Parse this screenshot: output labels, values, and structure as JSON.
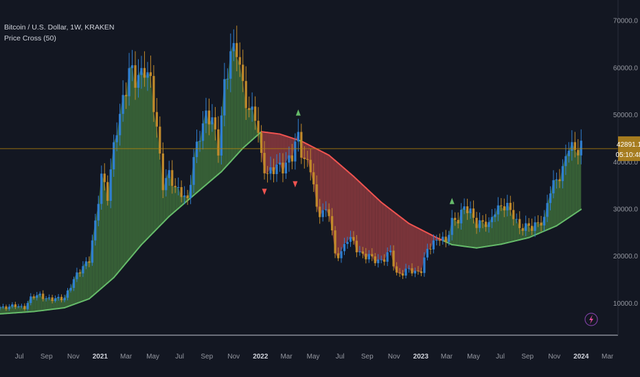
{
  "legend": {
    "symbol": "Bitcoin / U.S. Dollar, 1W, KRAKEN",
    "indicator": "Price Cross (50)"
  },
  "price_label": {
    "price": "42891.1",
    "countdown": "05:10:48"
  },
  "colors": {
    "background": "#131722",
    "candle_up": "#2f7fd1",
    "candle_down": "#c18a2b",
    "fill_above": "#3d6b3a",
    "fill_below": "#8c3a3e",
    "ma_above": "#66bb6a",
    "ma_below": "#ef5350",
    "price_line": "#b8860b",
    "price_tag": "#a67c1f"
  },
  "icons": {
    "bottom_right": "lightning-bolt-icon"
  },
  "chart_data": {
    "type": "line",
    "title": "Bitcoin / U.S. Dollar, 1W, KRAKEN",
    "indicator_name": "Price Cross (50)",
    "ylim": [
      4000,
      72000
    ],
    "y_ticks": [
      10000,
      20000,
      30000,
      40000,
      50000,
      60000,
      70000
    ],
    "y_tick_labels": [
      "10000.0",
      "20000.0",
      "30000.0",
      "40000.0",
      "50000.0",
      "60000.0",
      "70000.0"
    ],
    "x_ticks": [
      {
        "date": "2020-07-01",
        "label": "Jul"
      },
      {
        "date": "2020-09-01",
        "label": "Sep"
      },
      {
        "date": "2020-11-01",
        "label": "Nov"
      },
      {
        "date": "2021-01-01",
        "label": "2021"
      },
      {
        "date": "2021-03-01",
        "label": "Mar"
      },
      {
        "date": "2021-05-01",
        "label": "May"
      },
      {
        "date": "2021-07-01",
        "label": "Jul"
      },
      {
        "date": "2021-09-01",
        "label": "Sep"
      },
      {
        "date": "2021-11-01",
        "label": "Nov"
      },
      {
        "date": "2022-01-01",
        "label": "2022"
      },
      {
        "date": "2022-03-01",
        "label": "Mar"
      },
      {
        "date": "2022-05-01",
        "label": "May"
      },
      {
        "date": "2022-07-01",
        "label": "Jul"
      },
      {
        "date": "2022-09-01",
        "label": "Sep"
      },
      {
        "date": "2022-11-01",
        "label": "Nov"
      },
      {
        "date": "2023-01-01",
        "label": "2023"
      },
      {
        "date": "2023-03-01",
        "label": "Mar"
      },
      {
        "date": "2023-05-01",
        "label": "May"
      },
      {
        "date": "2023-07-01",
        "label": "Jul"
      },
      {
        "date": "2023-09-01",
        "label": "Sep"
      },
      {
        "date": "2023-11-01",
        "label": "Nov"
      },
      {
        "date": "2024-01-01",
        "label": "2024"
      },
      {
        "date": "2024-03-01",
        "label": "Mar"
      }
    ],
    "xlim": [
      "2020-05-18",
      "2024-03-25"
    ],
    "current_price": 42891.1,
    "price_series": {
      "name": "BTCUSD close (weekly, approx.)",
      "points": [
        [
          "2020-05-18",
          9200
        ],
        [
          "2020-06-15",
          9400
        ],
        [
          "2020-07-13",
          9300
        ],
        [
          "2020-07-27",
          11100
        ],
        [
          "2020-08-17",
          11800
        ],
        [
          "2020-09-14",
          10700
        ],
        [
          "2020-10-12",
          11400
        ],
        [
          "2020-10-26",
          13600
        ],
        [
          "2020-11-09",
          16000
        ],
        [
          "2020-11-23",
          18200
        ],
        [
          "2020-12-07",
          19200
        ],
        [
          "2020-12-21",
          26500
        ],
        [
          "2021-01-04",
          38000
        ],
        [
          "2021-01-18",
          33000
        ],
        [
          "2021-02-08",
          47000
        ],
        [
          "2021-02-22",
          54000
        ],
        [
          "2021-03-08",
          59000
        ],
        [
          "2021-03-22",
          57000
        ],
        [
          "2021-04-12",
          61000
        ],
        [
          "2021-04-26",
          56000
        ],
        [
          "2021-05-10",
          47000
        ],
        [
          "2021-05-24",
          36000
        ],
        [
          "2021-06-07",
          37000
        ],
        [
          "2021-06-21",
          34000
        ],
        [
          "2021-07-05",
          34500
        ],
        [
          "2021-07-19",
          31500
        ],
        [
          "2021-08-02",
          40000
        ],
        [
          "2021-08-16",
          47000
        ],
        [
          "2021-08-30",
          50000
        ],
        [
          "2021-09-13",
          48000
        ],
        [
          "2021-09-27",
          43500
        ],
        [
          "2021-10-11",
          57000
        ],
        [
          "2021-10-25",
          61500
        ],
        [
          "2021-11-08",
          65000
        ],
        [
          "2021-11-22",
          57000
        ],
        [
          "2021-12-06",
          49500
        ],
        [
          "2021-12-20",
          50500
        ],
        [
          "2022-01-03",
          42000
        ],
        [
          "2022-01-17",
          36500
        ],
        [
          "2022-01-31",
          38500
        ],
        [
          "2022-02-14",
          40000
        ],
        [
          "2022-02-28",
          39000
        ],
        [
          "2022-03-14",
          41000
        ],
        [
          "2022-03-28",
          46500
        ],
        [
          "2022-04-11",
          40000
        ],
        [
          "2022-04-25",
          38500
        ],
        [
          "2022-05-09",
          30500
        ],
        [
          "2022-05-23",
          29500
        ],
        [
          "2022-06-06",
          29000
        ],
        [
          "2022-06-20",
          20500
        ],
        [
          "2022-07-04",
          21000
        ],
        [
          "2022-07-18",
          23500
        ],
        [
          "2022-08-01",
          23000
        ],
        [
          "2022-08-15",
          21000
        ],
        [
          "2022-08-29",
          19800
        ],
        [
          "2022-09-12",
          19600
        ],
        [
          "2022-09-26",
          19300
        ],
        [
          "2022-10-10",
          19400
        ],
        [
          "2022-10-24",
          20700
        ],
        [
          "2022-11-07",
          16500
        ],
        [
          "2022-11-21",
          16500
        ],
        [
          "2022-12-05",
          17000
        ],
        [
          "2022-12-19",
          16800
        ],
        [
          "2023-01-02",
          17200
        ],
        [
          "2023-01-16",
          21000
        ],
        [
          "2023-01-30",
          23000
        ],
        [
          "2023-02-13",
          24500
        ],
        [
          "2023-02-27",
          22500
        ],
        [
          "2023-03-13",
          27500
        ],
        [
          "2023-03-27",
          28500
        ],
        [
          "2023-04-10",
          30000
        ],
        [
          "2023-04-24",
          29200
        ],
        [
          "2023-05-08",
          27500
        ],
        [
          "2023-05-22",
          27000
        ],
        [
          "2023-06-05",
          26200
        ],
        [
          "2023-06-19",
          30500
        ],
        [
          "2023-07-03",
          30500
        ],
        [
          "2023-07-17",
          30000
        ],
        [
          "2023-07-31",
          29300
        ],
        [
          "2023-08-14",
          26100
        ],
        [
          "2023-08-28",
          25800
        ],
        [
          "2023-09-11",
          26500
        ],
        [
          "2023-09-25",
          27500
        ],
        [
          "2023-10-09",
          27100
        ],
        [
          "2023-10-23",
          34500
        ],
        [
          "2023-11-06",
          37000
        ],
        [
          "2023-11-20",
          37500
        ],
        [
          "2023-12-04",
          43500
        ],
        [
          "2023-12-18",
          43500
        ],
        [
          "2024-01-01",
          42891.1
        ]
      ]
    },
    "ma_series": {
      "name": "Price Cross (50)",
      "points": [
        [
          "2020-05-18",
          7800
        ],
        [
          "2020-08-03",
          8300
        ],
        [
          "2020-10-12",
          9100
        ],
        [
          "2020-12-07",
          11000
        ],
        [
          "2021-02-01",
          15500
        ],
        [
          "2021-04-05",
          22500
        ],
        [
          "2021-06-07",
          28500
        ],
        [
          "2021-08-02",
          33000
        ],
        [
          "2021-10-04",
          38000
        ],
        [
          "2021-11-22",
          43000
        ],
        [
          "2022-01-03",
          46500
        ],
        [
          "2022-02-14",
          46000
        ],
        [
          "2022-04-04",
          44500
        ],
        [
          "2022-06-06",
          41500
        ],
        [
          "2022-08-01",
          37000
        ],
        [
          "2022-10-03",
          31500
        ],
        [
          "2022-12-05",
          27000
        ],
        [
          "2023-02-06",
          24000
        ],
        [
          "2023-03-13",
          22500
        ],
        [
          "2023-05-08",
          21800
        ],
        [
          "2023-07-03",
          22600
        ],
        [
          "2023-09-04",
          24000
        ],
        [
          "2023-11-06",
          26500
        ],
        [
          "2024-01-01",
          30000
        ]
      ]
    },
    "signals": [
      {
        "date": "2022-01-10",
        "type": "sell",
        "price": 33800
      },
      {
        "date": "2022-03-21",
        "type": "sell",
        "price": 35400
      },
      {
        "date": "2022-03-28",
        "type": "buy",
        "price": 50500
      },
      {
        "date": "2023-03-13",
        "type": "buy",
        "price": 31700
      }
    ],
    "grid": false,
    "legend": "top-left"
  }
}
